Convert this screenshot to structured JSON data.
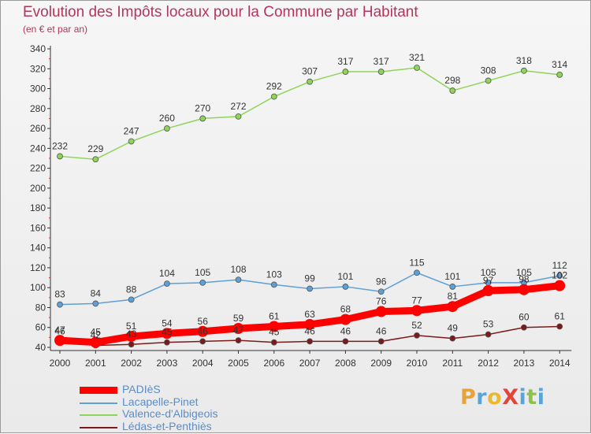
{
  "title": "Evolution des Impôts locaux pour la Commune par Habitant",
  "subtitle": "(en € et par an)",
  "logo": {
    "text": "ProXiti",
    "colors": [
      "#e7a33a",
      "#5aa4d8",
      "#e9b934",
      "#e0473b",
      "#5aa4d8",
      "#8bc34a",
      "#5aa4d8"
    ]
  },
  "chart_data": {
    "type": "line",
    "title": "Evolution des Impôts locaux pour la Commune par Habitant",
    "subtitle": "(en € et par an)",
    "x": [
      "2000",
      "2001",
      "2002",
      "2003",
      "2004",
      "2005",
      "2006",
      "2007",
      "2008",
      "2009",
      "2010",
      "2011",
      "2012",
      "2013",
      "2014"
    ],
    "ylim": [
      40,
      340
    ],
    "yticks": [
      40,
      60,
      80,
      100,
      120,
      140,
      160,
      180,
      200,
      220,
      240,
      260,
      280,
      300,
      320,
      340
    ],
    "grid": false,
    "legend_position": "bottom-left",
    "series": [
      {
        "name": "PADIèS",
        "color": "#ff0000",
        "width": 9,
        "marker": 7,
        "values": [
          47,
          45,
          51,
          54,
          56,
          59,
          61,
          63,
          68,
          76,
          77,
          81,
          97,
          98,
          102
        ],
        "labels": [
          "47",
          "45",
          "51",
          "54",
          "56",
          "59",
          "61",
          "63",
          "68",
          "76",
          "77",
          "81",
          "97",
          "98",
          "102"
        ]
      },
      {
        "name": "Lacapelle-Pinet",
        "color": "#5e9fd6",
        "width": 1.5,
        "marker": 3.5,
        "values": [
          83,
          84,
          88,
          104,
          105,
          108,
          103,
          99,
          101,
          96,
          115,
          101,
          105,
          105,
          112
        ],
        "labels": [
          "83",
          "84",
          "88",
          "104",
          "105",
          "108",
          "103",
          "99",
          "101",
          "96",
          "115",
          "101",
          "105",
          "105",
          "112"
        ]
      },
      {
        "name": "Valence-d'Albigeois",
        "color": "#8fd45a",
        "width": 1.5,
        "marker": 3.5,
        "values": [
          232,
          229,
          247,
          260,
          270,
          272,
          292,
          307,
          317,
          317,
          321,
          298,
          308,
          318,
          314
        ],
        "labels": [
          "232",
          "229",
          "247",
          "260",
          "270",
          "272",
          "292",
          "307",
          "317",
          "317",
          "321",
          "298",
          "308",
          "318",
          "314"
        ]
      },
      {
        "name": "Lédas-et-Penthiès",
        "color": "#7a1a1a",
        "width": 1.5,
        "marker": 3.5,
        "values": [
          46,
          42,
          43,
          45,
          46,
          47,
          45,
          46,
          46,
          46,
          52,
          49,
          53,
          60,
          61
        ],
        "labels": [
          "46",
          "42",
          "43",
          "45",
          "46",
          "47",
          "45",
          "46",
          "46",
          "46",
          "52",
          "49",
          "53",
          "60",
          "61"
        ]
      }
    ]
  }
}
